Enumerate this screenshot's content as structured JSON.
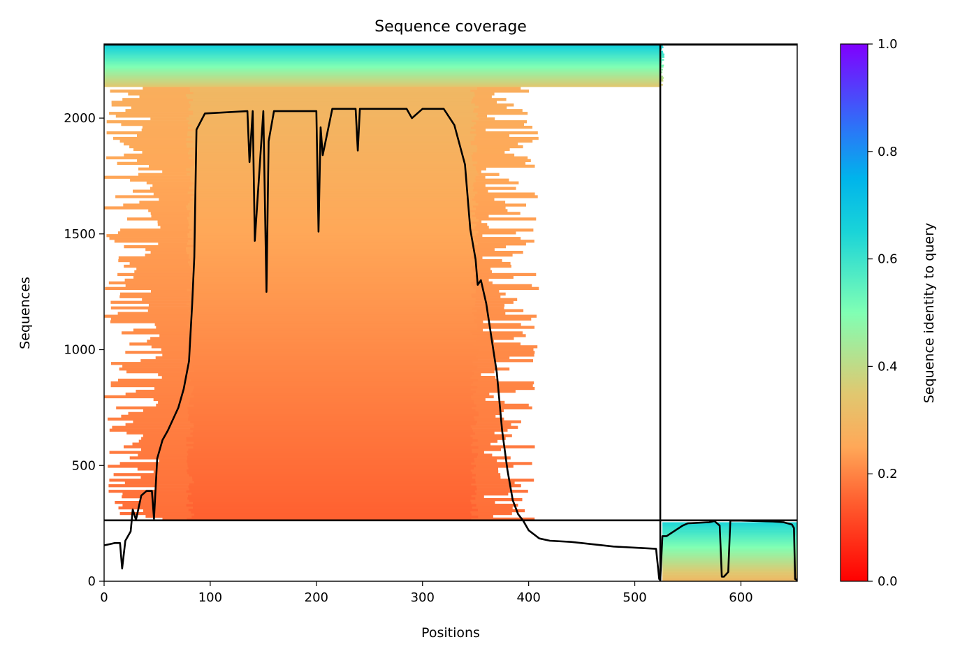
{
  "chart_data": {
    "type": "heatmap",
    "title": "Sequence coverage",
    "xlabel": "Positions",
    "ylabel": "Sequences",
    "xlim": [
      0,
      653
    ],
    "ylim": [
      0,
      2320
    ],
    "x_ticks": [
      0,
      100,
      200,
      300,
      400,
      500,
      600
    ],
    "y_ticks": [
      0,
      500,
      1000,
      1500,
      2000
    ],
    "segment_boundaries": {
      "position": 524,
      "sequence_row": 263
    },
    "colorbar": {
      "label": "Sequence identity to query",
      "range": [
        0.0,
        1.0
      ],
      "ticks": [
        "0.0",
        "0.2",
        "0.4",
        "0.6",
        "0.8",
        "1.0"
      ],
      "colormap": "rainbow_r",
      "colors": [
        "#ff0000",
        "#ff7f40",
        "#e0c060",
        "#80ffb4",
        "#1ac6e6",
        "#00b4eb",
        "#2f6ef9",
        "#8000ff"
      ]
    },
    "coverage_blocks": [
      {
        "name": "chain-1-high-identity",
        "x": [
          0,
          524
        ],
        "y": [
          2135,
          2320
        ],
        "identity": [
          0.35,
          0.68
        ]
      },
      {
        "name": "chain-1-core",
        "x": [
          85,
          345
        ],
        "y": [
          263,
          2130
        ],
        "identity": [
          0.15,
          0.3
        ]
      },
      {
        "name": "chain-1-extended",
        "x": [
          25,
          365
        ],
        "y": [
          263,
          2130
        ],
        "identity": [
          0.17,
          0.27
        ]
      },
      {
        "name": "chain-2-block",
        "x": [
          526,
          653
        ],
        "y": [
          0,
          255
        ],
        "identity": [
          0.3,
          0.65
        ]
      }
    ],
    "series": [
      {
        "type": "line",
        "x": [
          0,
          5,
          10,
          15,
          17,
          20,
          25,
          27,
          30,
          35,
          40,
          45,
          47,
          50,
          55,
          60,
          65,
          70,
          75,
          80,
          83,
          85,
          87,
          95,
          135,
          137,
          140,
          142,
          150,
          153,
          155,
          160,
          200,
          202,
          204,
          206,
          215,
          237,
          239,
          241,
          260,
          285,
          290,
          300,
          310,
          320,
          330,
          340,
          345,
          350,
          352,
          355,
          360,
          365,
          370,
          375,
          380,
          385,
          390,
          395,
          400,
          410,
          420,
          440,
          480,
          500,
          520,
          523,
          524,
          526,
          530,
          545,
          550,
          570,
          575,
          580,
          582,
          584,
          586,
          588,
          590,
          600,
          630,
          640,
          648,
          650,
          651,
          653
        ],
        "y": [
          155,
          160,
          165,
          165,
          55,
          175,
          215,
          310,
          265,
          370,
          390,
          390,
          270,
          530,
          610,
          650,
          700,
          750,
          830,
          950,
          1200,
          1400,
          1950,
          2020,
          2030,
          1810,
          2030,
          1470,
          2030,
          1250,
          1900,
          2030,
          2030,
          1510,
          1960,
          1840,
          2040,
          2040,
          1860,
          2040,
          2040,
          2040,
          2000,
          2040,
          2040,
          2040,
          1970,
          1800,
          1520,
          1390,
          1280,
          1300,
          1200,
          1050,
          900,
          650,
          480,
          350,
          290,
          260,
          220,
          185,
          175,
          170,
          150,
          145,
          140,
          10,
          5,
          195,
          195,
          240,
          250,
          255,
          260,
          240,
          20,
          20,
          30,
          40,
          262,
          262,
          258,
          255,
          245,
          230,
          10,
          5
        ]
      }
    ]
  }
}
